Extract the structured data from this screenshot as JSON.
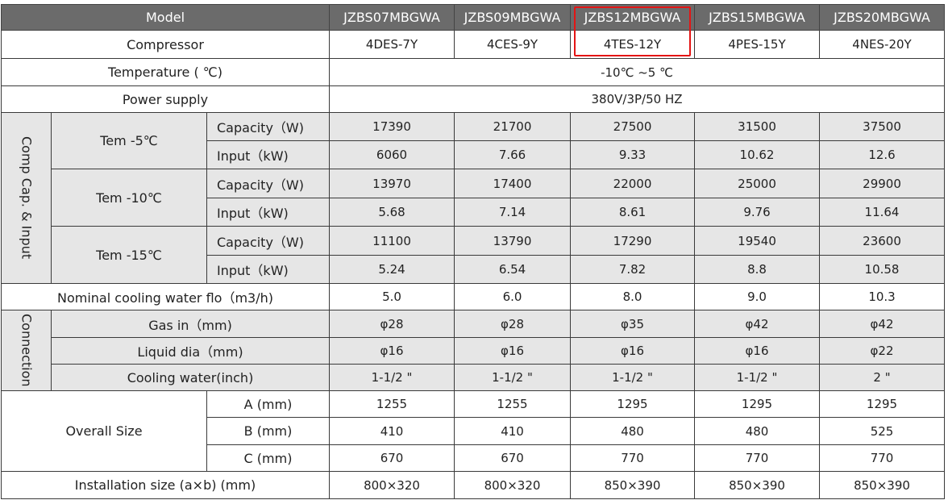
{
  "header": {
    "label": "Model",
    "models": [
      "JZBS07MBGWA",
      "JZBS09MBGWA",
      "JZBS12MBGWA",
      "JZBS15MBGWA",
      "JZBS20MBGWA"
    ]
  },
  "compressor": {
    "label": "Compressor",
    "values": [
      "4DES-7Y",
      "4CES-9Y",
      "4TES-12Y",
      "4PES-15Y",
      "4NES-20Y"
    ]
  },
  "temperature": {
    "label": "Temperature (  ℃)",
    "value": "-10℃  ~5  ℃"
  },
  "power_supply": {
    "label": "Power supply",
    "value": "380V/3P/50 HZ"
  },
  "comp_cap_input": {
    "group_label": "Comp Cap. & Input",
    "conditions": [
      {
        "label": "Tem -5℃",
        "capacity_label": "Capacity（W)",
        "capacity": [
          "17390",
          "21700",
          "27500",
          "31500",
          "37500"
        ],
        "input_label": "Input（kW)",
        "input": [
          "6060",
          "7.66",
          "9.33",
          "10.62",
          "12.6"
        ]
      },
      {
        "label": "Tem -10℃",
        "capacity_label": "Capacity（W)",
        "capacity": [
          "13970",
          "17400",
          "22000",
          "25000",
          "29900"
        ],
        "input_label": "Input（kW)",
        "input": [
          "5.68",
          "7.14",
          "8.61",
          "9.76",
          "11.64"
        ]
      },
      {
        "label": "Tem -15℃",
        "capacity_label": "Capacity（W)",
        "capacity": [
          "11100",
          "13790",
          "17290",
          "19540",
          "23600"
        ],
        "input_label": "Input（kW)",
        "input": [
          "5.24",
          "6.54",
          "7.82",
          "8.8",
          "10.58"
        ]
      }
    ]
  },
  "nominal_flow": {
    "label": "Nominal cooling water flo（m3/h)",
    "values": [
      "5.0",
      "6.0",
      "8.0",
      "9.0",
      "10.3"
    ]
  },
  "connection": {
    "group_label": "Connection",
    "rows": [
      {
        "label": "Gas in（mm)",
        "values": [
          "φ28",
          "φ28",
          "φ35",
          "φ42",
          "φ42"
        ]
      },
      {
        "label": "Liquid dia（mm)",
        "values": [
          "φ16",
          "φ16",
          "φ16",
          "φ16",
          "φ22"
        ]
      },
      {
        "label": "Cooling water(inch)",
        "values": [
          "1-1/2 \"",
          "1-1/2 \"",
          "1-1/2 \"",
          "1-1/2 \"",
          "2 \""
        ]
      }
    ]
  },
  "overall_size": {
    "label": "Overall Size",
    "rows": [
      {
        "label": "A (mm)",
        "values": [
          "1255",
          "1255",
          "1295",
          "1295",
          "1295"
        ]
      },
      {
        "label": "B (mm)",
        "values": [
          "410",
          "410",
          "480",
          "480",
          "525"
        ]
      },
      {
        "label": "C (mm)",
        "values": [
          "670",
          "670",
          "770",
          "770",
          "770"
        ]
      }
    ]
  },
  "installation": {
    "label": "Installation size      (a×b)  (mm)",
    "values": [
      "800×320",
      "800×320",
      "850×390",
      "850×390",
      "850×390"
    ]
  },
  "highlight": {
    "model": "JZBS12MBGWA",
    "color": "#e41414"
  },
  "colors": {
    "header_bg": "#6b6b6b",
    "shaded_bg": "#e6e6e6"
  }
}
